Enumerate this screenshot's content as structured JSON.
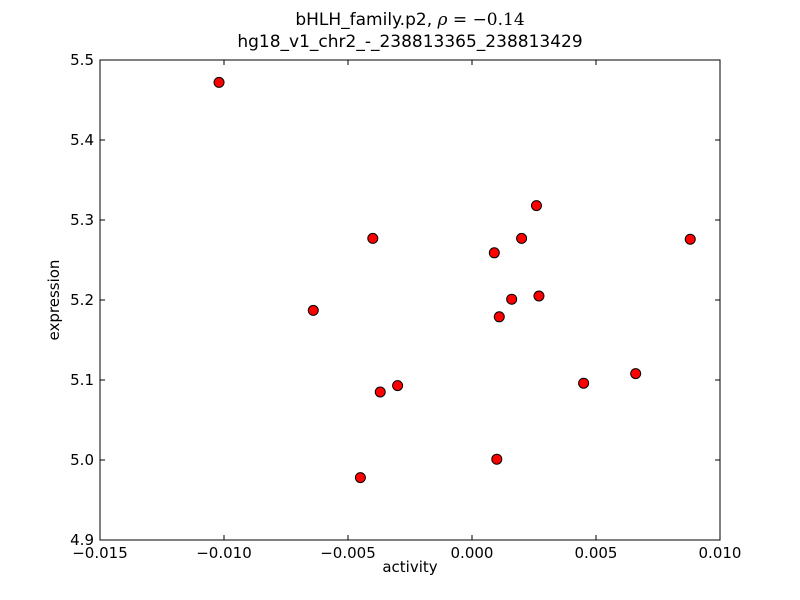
{
  "chart_data": {
    "type": "scatter",
    "title": "bHLH_family.p2, ρ = −0.14",
    "title_parts": {
      "prefix": "bHLH_family.p2, ",
      "rho": "ρ",
      "equals_value": " = −0.14"
    },
    "subtitle": "hg18_v1_chr2_-_238813365_238813429",
    "xlabel": "activity",
    "ylabel": "expression",
    "xlim": [
      -0.015,
      0.01
    ],
    "ylim": [
      4.9,
      5.5
    ],
    "xticks": [
      -0.015,
      -0.01,
      -0.005,
      0.0,
      0.005,
      0.01
    ],
    "xtick_labels": [
      "−0.015",
      "−0.010",
      "−0.005",
      "0.000",
      "0.005",
      "0.010"
    ],
    "yticks": [
      4.9,
      5.0,
      5.1,
      5.2,
      5.3,
      5.4,
      5.5
    ],
    "ytick_labels": [
      "4.9",
      "5.0",
      "5.1",
      "5.2",
      "5.3",
      "5.4",
      "5.5"
    ],
    "series": [
      {
        "name": "points",
        "points": [
          [
            -0.0102,
            5.472
          ],
          [
            -0.0064,
            5.187
          ],
          [
            -0.0045,
            4.978
          ],
          [
            -0.004,
            5.277
          ],
          [
            -0.0037,
            5.085
          ],
          [
            -0.003,
            5.093
          ],
          [
            0.0009,
            5.259
          ],
          [
            0.001,
            5.001
          ],
          [
            0.0011,
            5.179
          ],
          [
            0.0016,
            5.201
          ],
          [
            0.002,
            5.277
          ],
          [
            0.0026,
            5.318
          ],
          [
            0.0027,
            5.205
          ],
          [
            0.0045,
            5.096
          ],
          [
            0.0066,
            5.108
          ],
          [
            0.0088,
            5.276
          ]
        ]
      }
    ],
    "marker": {
      "shape": "circle",
      "radius": 5,
      "fill_color": "#ff0000",
      "edge_color": "#000000"
    },
    "grid": false,
    "legend": null,
    "axis_color": "#000000",
    "background_color": "#ffffff"
  }
}
